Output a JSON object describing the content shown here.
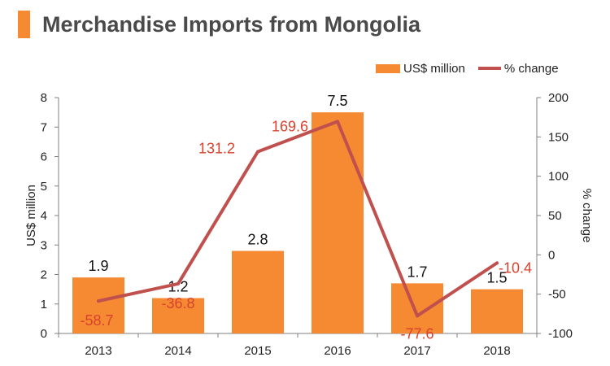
{
  "title": "Merchandise Imports from Mongolia",
  "colors": {
    "accent": "#f58a33",
    "bar": "#f58a33",
    "line": "#c0504d",
    "line_label": "#d9432e",
    "title": "#4a4a4a"
  },
  "legend": {
    "bar_label": "US$ million",
    "line_label": "% change",
    "position": "top-right"
  },
  "chart_data": {
    "type": "bar",
    "title": "Merchandise Imports from Mongolia",
    "categories": [
      "2013",
      "2014",
      "2015",
      "2016",
      "2017",
      "2018"
    ],
    "series": [
      {
        "name": "US$ million",
        "type": "bar",
        "axis": "left",
        "values": [
          1.9,
          1.2,
          2.8,
          7.5,
          1.7,
          1.5
        ],
        "labels": [
          "1.9",
          "1.2",
          "2.8",
          "7.5",
          "1.7",
          "1.5"
        ]
      },
      {
        "name": "% change",
        "type": "line",
        "axis": "right",
        "values": [
          -58.7,
          -36.8,
          131.2,
          169.6,
          -77.6,
          -10.4
        ],
        "labels": [
          "-58.7",
          "-36.8",
          "131.2",
          "169.6",
          "-77.6",
          "-10.4"
        ]
      }
    ],
    "ylabel": "US$ million",
    "ylim": [
      0,
      8
    ],
    "yticks": [
      "0",
      "1",
      "2",
      "3",
      "4",
      "5",
      "6",
      "7",
      "8"
    ],
    "y2label": "% change",
    "y2lim": [
      -100,
      200
    ],
    "y2ticks": [
      "-100",
      "-50",
      "0",
      "50",
      "100",
      "150",
      "200"
    ],
    "grid": false,
    "legend_position": "top-right"
  }
}
